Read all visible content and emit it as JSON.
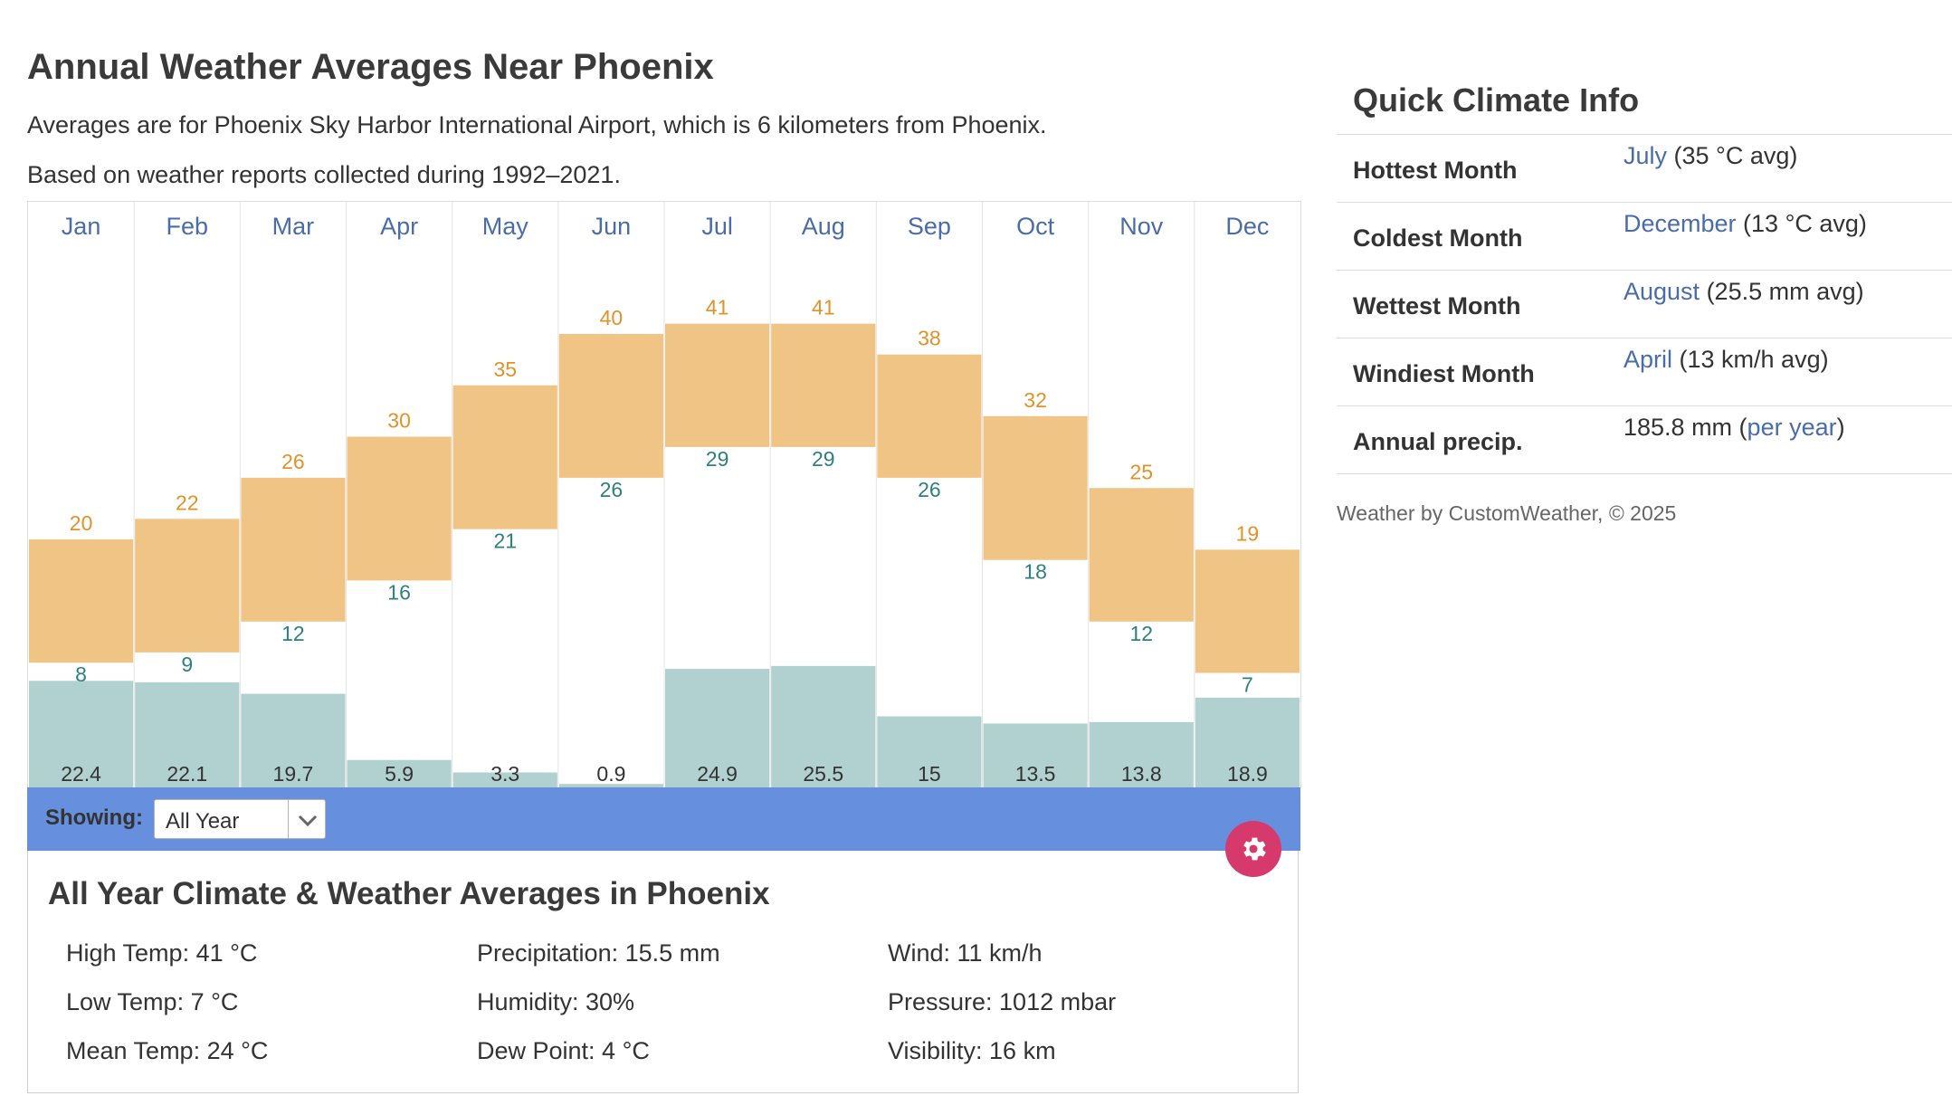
{
  "page": {
    "title": "Annual Weather Averages Near Phoenix",
    "subtitle": "Averages are for Phoenix Sky Harbor International Airport, which is 6 kilometers from Phoenix.",
    "based_on": "Based on weather reports collected during 1992–2021."
  },
  "colors": {
    "temp_band": "#f0c484",
    "high_label": "#e0922b",
    "low_label": "#2f7f7f",
    "precip_bar": "#b1d0d0",
    "month_label": "#4a6ca8",
    "showing_bar": "#6690dd",
    "gear": "#d63a6c"
  },
  "chart_data": {
    "type": "bar",
    "categories": [
      "Jan",
      "Feb",
      "Mar",
      "Apr",
      "May",
      "Jun",
      "Jul",
      "Aug",
      "Sep",
      "Oct",
      "Nov",
      "Dec"
    ],
    "series": [
      {
        "values": [
          20,
          22,
          26,
          30,
          35,
          40,
          41,
          41,
          38,
          32,
          25,
          19
        ]
      },
      {
        "values": [
          8,
          9,
          12,
          16,
          21,
          26,
          29,
          29,
          26,
          18,
          12,
          7
        ]
      },
      {
        "values": [
          22.4,
          22.1,
          19.7,
          5.9,
          3.3,
          0.9,
          24.9,
          25.5,
          15,
          13.5,
          13.8,
          18.9
        ]
      }
    ],
    "value_labels": {
      "high": [
        "20",
        "22",
        "26",
        "30",
        "35",
        "40",
        "41",
        "41",
        "38",
        "32",
        "25",
        "19"
      ],
      "low": [
        "8",
        "9",
        "12",
        "16",
        "21",
        "26",
        "29",
        "29",
        "26",
        "18",
        "12",
        "7"
      ],
      "precip": [
        "22.4",
        "22.1",
        "19.7",
        "5.9",
        "3.3",
        "0.9",
        "24.9",
        "25.5",
        "15",
        "13.5",
        "13.8",
        "18.9"
      ]
    },
    "grid": true
  },
  "showing": {
    "label": "Showing:",
    "selected": "All Year"
  },
  "settings_icon": "gear-icon",
  "summary": {
    "title": "All Year Climate & Weather Averages in Phoenix",
    "stats": [
      "High Temp: 41 °C",
      "Low Temp: 7 °C",
      "Mean Temp: 24 °C",
      "Precipitation: 15.5 mm",
      "Humidity: 30%",
      "Dew Point: 4 °C",
      "Wind: 11 km/h",
      "Pressure: 1012 mbar",
      "Visibility: 16 km"
    ]
  },
  "quick_climate": {
    "title": "Quick Climate Info",
    "rows": [
      {
        "label": "Hottest Month",
        "link": "July",
        "rest": " (35 °C avg)"
      },
      {
        "label": "Coldest Month",
        "link": "December",
        "rest": " (13 °C avg)"
      },
      {
        "label": "Wettest Month",
        "link": "August",
        "rest": " (25.5 mm avg)"
      },
      {
        "label": "Windiest Month",
        "link": "April",
        "rest": " (13 km/h avg)"
      },
      {
        "label": "Annual precip.",
        "pre": "185.8 mm (",
        "link": "per year",
        "rest": ")"
      }
    ],
    "credit": "Weather by CustomWeather, © 2025"
  }
}
